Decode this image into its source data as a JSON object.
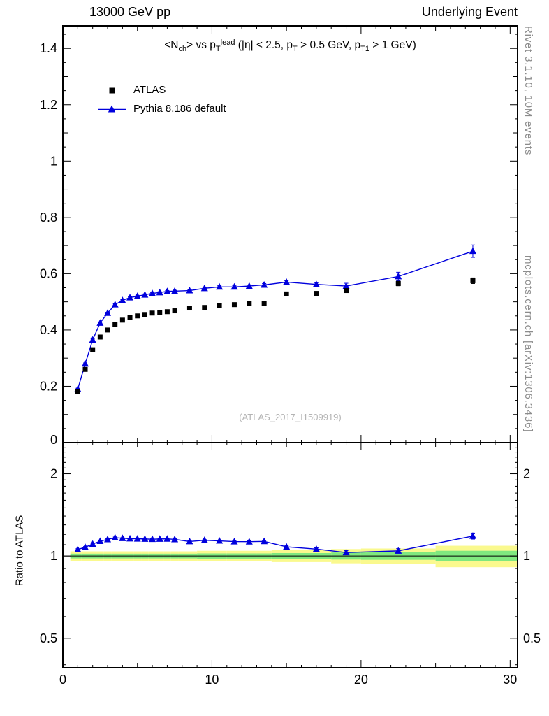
{
  "header": {
    "left": "13000 GeV pp",
    "right": "Underlying Event"
  },
  "plot_title": {
    "text": "<Nch> vs pTlead (|η| < 2.5, pT > 0.5 GeV, pT1 > 1 GeV)",
    "segments": [
      {
        "t": "<N",
        "s": "n"
      },
      {
        "t": "ch",
        "s": "sub"
      },
      {
        "t": "> vs p",
        "s": "n"
      },
      {
        "t": "T",
        "s": "sub"
      },
      {
        "t": "lead",
        "s": "sup"
      },
      {
        "t": " (|η| < 2.5, p",
        "s": "n"
      },
      {
        "t": "T",
        "s": "sub"
      },
      {
        "t": " > 0.5 GeV, p",
        "s": "n"
      },
      {
        "t": "T1",
        "s": "sub"
      },
      {
        "t": " > 1 GeV)",
        "s": "n"
      }
    ]
  },
  "legend": {
    "items": [
      {
        "label": "ATLAS",
        "marker": "square",
        "color": "#000000"
      },
      {
        "label": "Pythia 8.186 default",
        "marker": "triangle-line",
        "color": "#0000dd"
      }
    ]
  },
  "watermark": "(ATLAS_2017_I1509919)",
  "side_notes": {
    "rivet": "Rivet 3.1.10,  10M events",
    "mcplots": "mcplots.cern.ch [arXiv:1306.3436]"
  },
  "ratio_panel_label": "Ratio to ATLAS",
  "chart_data": {
    "type": "line",
    "title": "<Nch> vs pTlead (|η| < 2.5, pT > 0.5 GeV, pT1 > 1 GeV)",
    "xlabel": "",
    "ylabel": "",
    "grid": false,
    "legend_position": "top-left",
    "xaxis": {
      "xlim": [
        0,
        30.5
      ],
      "xticks": [
        0,
        10,
        20,
        30
      ],
      "xtick_labels": [
        "0",
        "10",
        "20",
        "30"
      ]
    },
    "top_panel": {
      "ylim": [
        0,
        1.48
      ],
      "yticks": [
        0,
        0.2,
        0.4,
        0.6,
        0.8,
        1,
        1.2,
        1.4
      ],
      "ytick_labels": [
        "0",
        "0.2",
        "0.4",
        "0.6",
        "0.8",
        "1",
        "1.2",
        "1.4"
      ]
    },
    "ratio_panel": {
      "scale": "log",
      "ylim": [
        0.39,
        2.6
      ],
      "yticks": [
        0.5,
        1,
        2
      ],
      "ytick_labels": [
        "0.5",
        "1",
        "2"
      ]
    },
    "x": [
      1,
      1.5,
      2,
      2.5,
      3,
      3.5,
      4,
      4.5,
      5,
      5.5,
      6,
      6.5,
      7,
      7.5,
      8.5,
      9.5,
      10.5,
      11.5,
      12.5,
      13.5,
      15,
      17,
      19,
      22.5,
      27.5
    ],
    "series": [
      {
        "name": "ATLAS",
        "marker": "square",
        "color": "#000000",
        "line": false,
        "y": [
          0.18,
          0.26,
          0.33,
          0.375,
          0.4,
          0.42,
          0.435,
          0.445,
          0.45,
          0.455,
          0.46,
          0.462,
          0.465,
          0.468,
          0.478,
          0.48,
          0.487,
          0.49,
          0.493,
          0.495,
          0.528,
          0.53,
          0.54,
          0.565,
          0.575
        ],
        "yerr": [
          0.004,
          0.004,
          0.004,
          0.004,
          0.004,
          0.004,
          0.004,
          0.004,
          0.004,
          0.004,
          0.004,
          0.004,
          0.004,
          0.004,
          0.004,
          0.004,
          0.004,
          0.004,
          0.004,
          0.004,
          0.005,
          0.005,
          0.006,
          0.008,
          0.01
        ]
      },
      {
        "name": "Pythia 8.186 default",
        "marker": "triangle",
        "color": "#0000dd",
        "line": true,
        "y": [
          0.19,
          0.28,
          0.365,
          0.425,
          0.46,
          0.49,
          0.505,
          0.515,
          0.52,
          0.525,
          0.53,
          0.533,
          0.537,
          0.538,
          0.54,
          0.548,
          0.553,
          0.553,
          0.556,
          0.56,
          0.57,
          0.562,
          0.556,
          0.59,
          0.68
        ],
        "yerr": [
          0.003,
          0.003,
          0.003,
          0.003,
          0.003,
          0.003,
          0.003,
          0.003,
          0.003,
          0.003,
          0.003,
          0.003,
          0.003,
          0.003,
          0.003,
          0.003,
          0.004,
          0.004,
          0.004,
          0.005,
          0.005,
          0.006,
          0.01,
          0.015,
          0.022
        ]
      }
    ],
    "ratio": {
      "reference": "ATLAS",
      "series": [
        {
          "name": "Pythia 8.186 default / ATLAS",
          "color": "#0000dd",
          "y": [
            1.056,
            1.077,
            1.106,
            1.133,
            1.15,
            1.167,
            1.161,
            1.157,
            1.156,
            1.154,
            1.152,
            1.154,
            1.155,
            1.15,
            1.13,
            1.142,
            1.136,
            1.129,
            1.128,
            1.131,
            1.08,
            1.06,
            1.03,
            1.044,
            1.183
          ],
          "yerr": [
            0.007,
            0.006,
            0.006,
            0.006,
            0.006,
            0.006,
            0.006,
            0.006,
            0.006,
            0.006,
            0.006,
            0.006,
            0.006,
            0.006,
            0.006,
            0.007,
            0.007,
            0.007,
            0.008,
            0.008,
            0.009,
            0.011,
            0.016,
            0.02,
            0.03
          ]
        }
      ],
      "band": {
        "edges": [
          0.5,
          1.25,
          1.75,
          2.25,
          2.75,
          3.25,
          3.75,
          4.25,
          4.75,
          5.25,
          5.75,
          6.25,
          6.75,
          7.25,
          7.75,
          9,
          10,
          11,
          12,
          13,
          14,
          16,
          18,
          20,
          25,
          30.5
        ],
        "yellow_hw": [
          0.04,
          0.04,
          0.04,
          0.04,
          0.04,
          0.04,
          0.04,
          0.04,
          0.04,
          0.04,
          0.04,
          0.04,
          0.04,
          0.04,
          0.04,
          0.045,
          0.045,
          0.045,
          0.045,
          0.045,
          0.05,
          0.05,
          0.06,
          0.065,
          0.09
        ],
        "green_hw": [
          0.02,
          0.02,
          0.02,
          0.02,
          0.02,
          0.02,
          0.02,
          0.02,
          0.02,
          0.02,
          0.02,
          0.02,
          0.02,
          0.02,
          0.02,
          0.022,
          0.022,
          0.022,
          0.022,
          0.022,
          0.025,
          0.025,
          0.03,
          0.032,
          0.045
        ]
      },
      "band_colors": {
        "yellow": "#faf98e",
        "green": "#7fe87f"
      }
    }
  }
}
